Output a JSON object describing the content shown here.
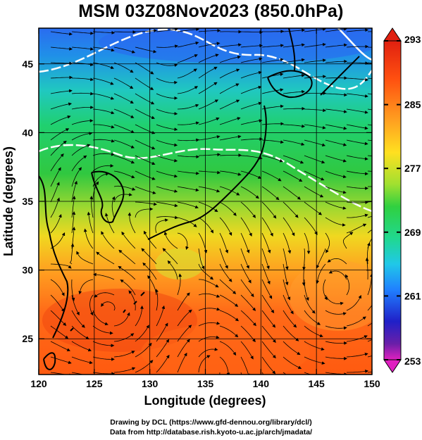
{
  "title": "MSM 03Z08Nov2023 (850.0hPa)",
  "x_axis": {
    "label": "Longitude (degrees)",
    "ticks": [
      "120",
      "125",
      "130",
      "135",
      "140",
      "145",
      "150"
    ],
    "range": [
      120,
      150
    ]
  },
  "y_axis": {
    "label": "Latitude  (degrees)",
    "ticks": [
      "25",
      "30",
      "35",
      "40",
      "45"
    ],
    "range": [
      22.4,
      47.6
    ]
  },
  "colorbar": {
    "ticks": [
      "293",
      "285",
      "277",
      "269",
      "261",
      "253"
    ],
    "range": [
      253,
      293
    ],
    "colors": [
      "#e020c0",
      "#6a1fa8",
      "#2020c8",
      "#2080ff",
      "#20c8e8",
      "#20d890",
      "#30d040",
      "#a0e030",
      "#ffe020",
      "#ffa020",
      "#ff5010",
      "#e02010"
    ]
  },
  "credits": {
    "line1": "Drawing by DCL (https://www.gfd-dennou.org/library/dcl/)",
    "line2": "Data from http://database.rish.kyoto-u.ac.jp/arch/jmadata/"
  }
}
